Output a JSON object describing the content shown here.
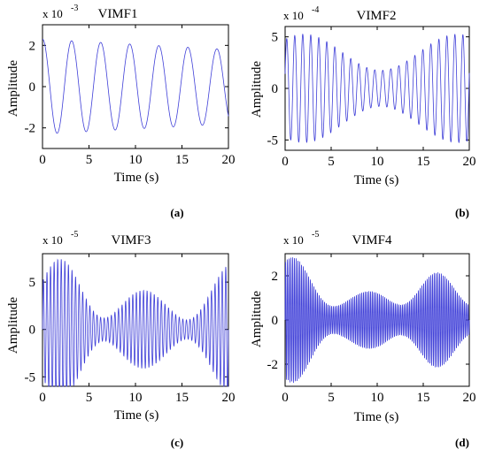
{
  "panels": [
    {
      "label": "(a)"
    },
    {
      "label": "(b)"
    },
    {
      "label": "(c)"
    },
    {
      "label": "(d)"
    }
  ],
  "series_color": "#3f3fd8",
  "chart_data": [
    {
      "type": "line",
      "title": "VIMF1",
      "xlabel": "Time (s)",
      "ylabel": "Amplitude",
      "exponent_base": "x 10",
      "exponent_power": "-3",
      "xlim": [
        0,
        20
      ],
      "ylim": [
        -3,
        3
      ],
      "xticks": [
        0,
        5,
        10,
        15,
        20
      ],
      "yticks": [
        -2,
        0,
        2
      ],
      "signal": {
        "freq_hz": 0.32,
        "amp_start": 2.3,
        "amp_end": 1.8,
        "phase": 1.55,
        "harmonics": []
      }
    },
    {
      "type": "line",
      "title": "VIMF2",
      "xlabel": "Time (s)",
      "ylabel": "Amplitude",
      "exponent_base": "x 10",
      "exponent_power": "-4",
      "xlim": [
        0,
        20
      ],
      "ylim": [
        -6,
        6
      ],
      "xticks": [
        0,
        5,
        10,
        15,
        20
      ],
      "yticks": [
        -5,
        0,
        5
      ],
      "signal": {
        "freq_hz": 1.15,
        "amp_start": 3.5,
        "amp_end": 3.5,
        "phase": 0.3,
        "harmonics": [
          [
            0.06,
            0.5,
            0.8
          ]
        ]
      }
    },
    {
      "type": "line",
      "title": "VIMF3",
      "xlabel": "Time (s)",
      "ylabel": "Amplitude",
      "exponent_base": "x 10",
      "exponent_power": "-5",
      "xlim": [
        0,
        20
      ],
      "ylim": [
        -6,
        8
      ],
      "xticks": [
        0,
        5,
        10,
        15,
        20
      ],
      "yticks": [
        -5,
        0,
        5
      ],
      "signal": {
        "freq_hz": 2.6,
        "amp_start": 3.5,
        "amp_end": 3.5,
        "phase": 0.0,
        "harmonics": [
          [
            0.11,
            0.65,
            0.2
          ],
          [
            0.045,
            0.3,
            1.3
          ]
        ]
      }
    },
    {
      "type": "line",
      "title": "VIMF4",
      "xlabel": "Time (s)",
      "ylabel": "Amplitude",
      "exponent_base": "x 10",
      "exponent_power": "-5",
      "xlim": [
        0,
        20
      ],
      "ylim": [
        -3,
        3
      ],
      "xticks": [
        0,
        5,
        10,
        15,
        20
      ],
      "yticks": [
        -2,
        0,
        2
      ],
      "signal": {
        "freq_hz": 5.2,
        "amp_start": 1.6,
        "amp_end": 1.0,
        "phase": 0.0,
        "harmonics": [
          [
            0.13,
            0.45,
            0.6
          ],
          [
            0.055,
            0.35,
            2.0
          ]
        ]
      }
    }
  ]
}
